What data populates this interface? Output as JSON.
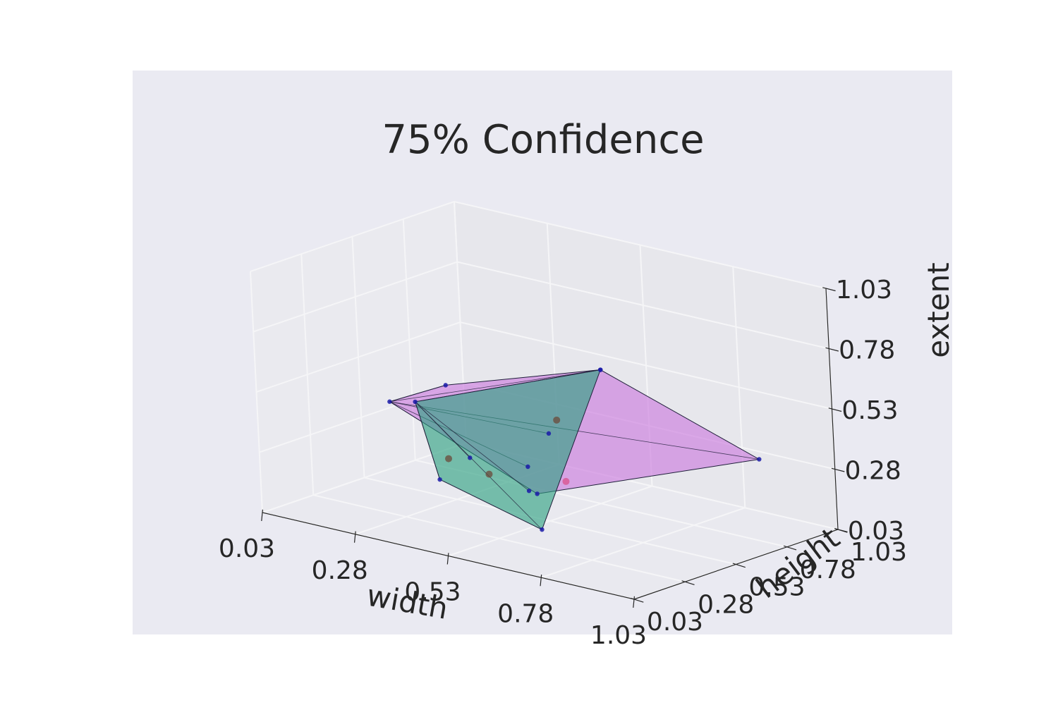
{
  "chart_data": {
    "type": "scatter3d",
    "title": "75% Confidence",
    "xlabel": "width",
    "ylabel": "height",
    "zlabel": "extent",
    "xlim": [
      0.03,
      1.03
    ],
    "ylim": [
      0.03,
      1.03
    ],
    "zlim": [
      0.03,
      1.03
    ],
    "x_ticks": [
      "0.03",
      "0.28",
      "0.53",
      "0.78",
      "1.03"
    ],
    "y_ticks": [
      "0.03",
      "0.28",
      "0.53",
      "0.78",
      "1.03"
    ],
    "z_ticks": [
      "0.03",
      "0.28",
      "0.53",
      "0.78",
      "1.03"
    ],
    "grid": true,
    "colors": {
      "pane_background": "#eaeaf2",
      "pane_face": "#e6e6ea",
      "gridline": "#f5f5f7",
      "purple_hull": "#c978dd",
      "green_hull": "#2ba07f",
      "vertex": "#1a1aa8",
      "pink_point": "#d9508c",
      "brown_point": "#6b4a3a"
    },
    "series": [
      {
        "hull": "purple",
        "points": [
          [
            0.38,
            0.05,
            0.61
          ],
          [
            0.45,
            0.2,
            0.66
          ],
          [
            0.58,
            0.72,
            0.62
          ],
          [
            1.0,
            0.72,
            0.4
          ],
          [
            0.6,
            0.35,
            0.22
          ],
          [
            0.55,
            0.4,
            0.3
          ],
          [
            0.6,
            0.42,
            0.45
          ]
        ]
      },
      {
        "hull": "green",
        "points": [
          [
            0.41,
            0.12,
            0.6
          ],
          [
            0.58,
            0.72,
            0.62
          ],
          [
            0.32,
            0.38,
            0.17
          ],
          [
            0.58,
            0.4,
            0.05
          ],
          [
            0.55,
            0.4,
            0.2
          ],
          [
            0.45,
            0.3,
            0.33
          ]
        ]
      }
    ],
    "highlight_points": [
      {
        "color": "pink",
        "point": [
          0.68,
          0.35,
          0.3
        ]
      },
      {
        "color": "brown",
        "point": [
          0.5,
          0.3,
          0.28
        ]
      },
      {
        "color": "brown",
        "point": [
          0.42,
          0.25,
          0.33
        ]
      },
      {
        "color": "brown",
        "point": [
          0.55,
          0.55,
          0.45
        ]
      }
    ]
  }
}
